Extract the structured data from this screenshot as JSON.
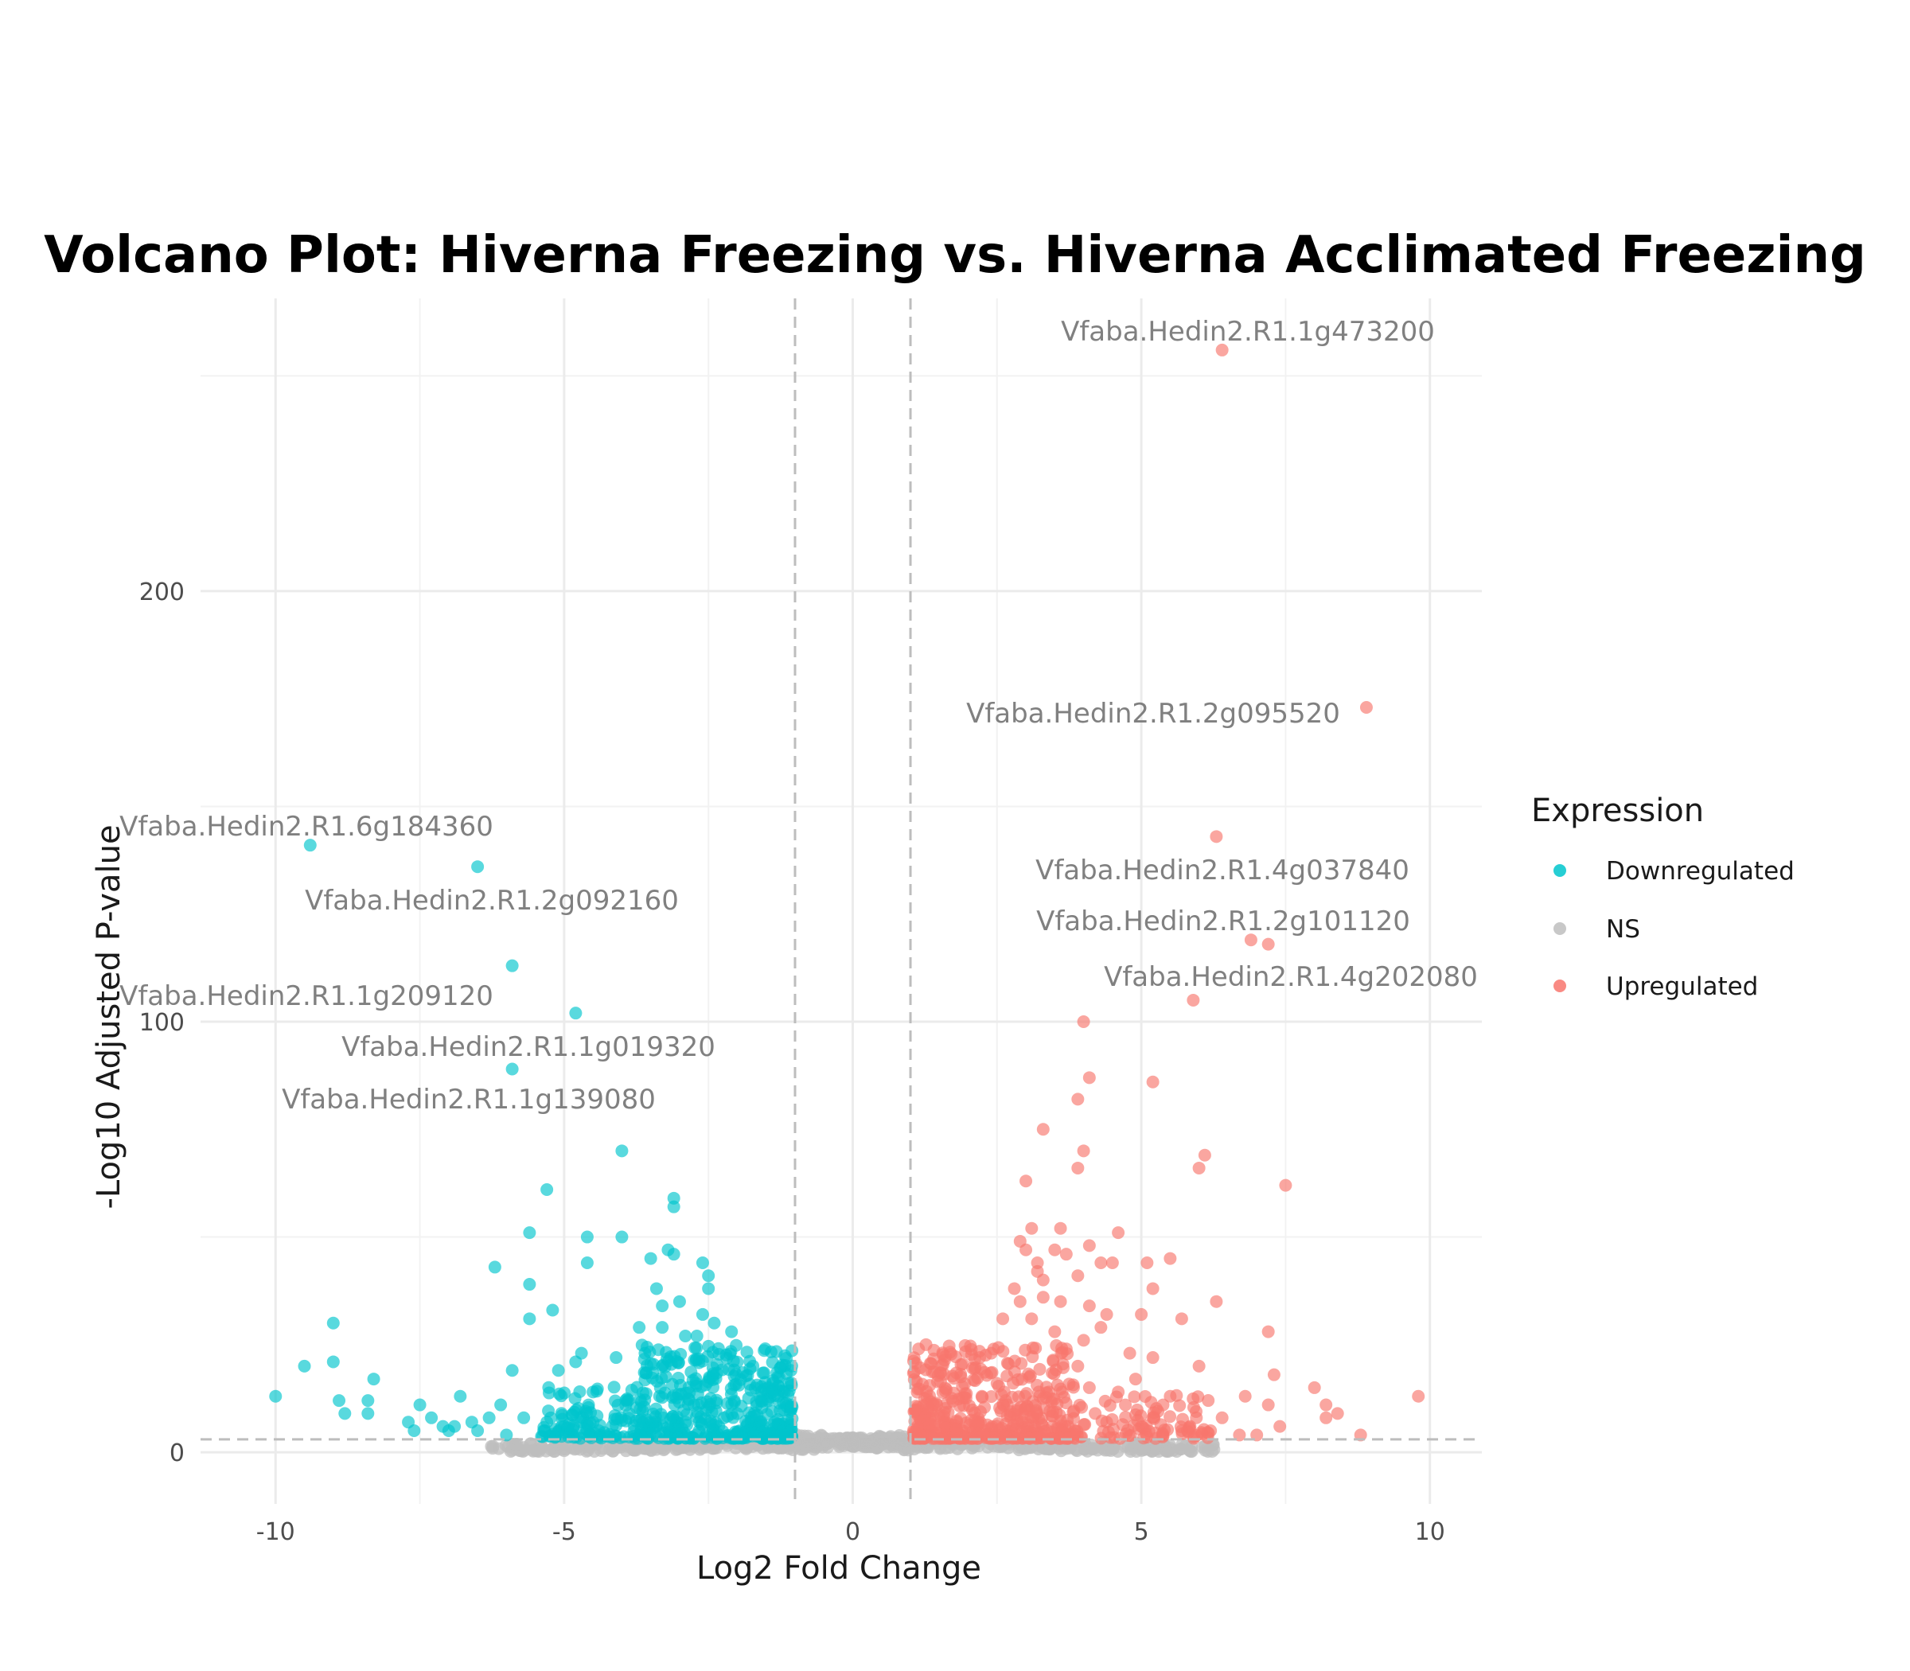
{
  "chart_data": {
    "type": "scatter",
    "title": "Volcano Plot: Hiverna Freezing vs. Hiverna Acclimated Freezing",
    "xlabel": "Log2 Fold Change",
    "ylabel": "-Log10 Adjusted P-value",
    "xlim": [
      -11.3,
      10.9
    ],
    "ylim": [
      -12,
      268
    ],
    "x_ticks": [
      -10,
      -5,
      0,
      5,
      10
    ],
    "x_tick_labels": [
      "-10",
      "-5",
      "0",
      "5",
      "10"
    ],
    "y_ticks": [
      0,
      100,
      200
    ],
    "y_tick_labels": [
      "0",
      "100",
      "200"
    ],
    "grid": true,
    "thresholds": {
      "log2fc": [
        -1,
        1
      ],
      "neg_log10_padj": 3
    },
    "legend": {
      "title": "Expression",
      "position": "right",
      "entries": [
        {
          "label": "Downregulated",
          "color": "#00c5cd"
        },
        {
          "label": "NS",
          "color": "#bebebe"
        },
        {
          "label": "Upregulated",
          "color": "#f8766d"
        }
      ]
    },
    "series": [
      {
        "name": "Downregulated",
        "color": "#00c5cd",
        "points": [
          [
            -9.4,
            141
          ],
          [
            -6.5,
            136
          ],
          [
            -5.9,
            113
          ],
          [
            -4.8,
            102
          ],
          [
            -5.9,
            89
          ],
          [
            -4.0,
            70
          ],
          [
            -5.3,
            61
          ],
          [
            -3.1,
            59
          ],
          [
            -3.1,
            57
          ],
          [
            -5.6,
            51
          ],
          [
            -4.6,
            50
          ],
          [
            -4.0,
            50
          ],
          [
            -3.2,
            47
          ],
          [
            -3.1,
            46
          ],
          [
            -3.5,
            45
          ],
          [
            -4.6,
            44
          ],
          [
            -2.6,
            44
          ],
          [
            -6.2,
            43
          ],
          [
            -2.5,
            41
          ],
          [
            -5.6,
            39
          ],
          [
            -2.5,
            38
          ],
          [
            -3.4,
            38
          ],
          [
            -3.3,
            34
          ],
          [
            -3.0,
            35
          ],
          [
            -5.2,
            33
          ],
          [
            -5.6,
            31
          ],
          [
            -9.0,
            30
          ],
          [
            -2.6,
            32
          ],
          [
            -2.4,
            30
          ],
          [
            -3.3,
            29
          ],
          [
            -3.7,
            29
          ],
          [
            -2.1,
            28
          ],
          [
            -2.9,
            27
          ],
          [
            -2.7,
            27
          ],
          [
            -4.7,
            23
          ],
          [
            -4.1,
            22
          ],
          [
            -3.6,
            23
          ],
          [
            -4.8,
            21
          ],
          [
            -9.0,
            21
          ],
          [
            -9.5,
            20
          ],
          [
            -5.9,
            19
          ],
          [
            -5.1,
            19
          ],
          [
            -3.3,
            20
          ],
          [
            -8.3,
            17
          ],
          [
            -4.5,
            14
          ],
          [
            -10.0,
            13
          ],
          [
            -6.8,
            13
          ],
          [
            -8.9,
            12
          ],
          [
            -8.4,
            12
          ],
          [
            -7.5,
            11
          ],
          [
            -6.1,
            11
          ],
          [
            -8.8,
            9
          ],
          [
            -8.4,
            9
          ],
          [
            -5.7,
            8
          ],
          [
            -7.3,
            8
          ],
          [
            -6.3,
            8
          ],
          [
            -7.7,
            7
          ],
          [
            -6.6,
            7
          ],
          [
            -5.3,
            7
          ],
          [
            -6.9,
            6
          ],
          [
            -7.1,
            6
          ],
          [
            -5.0,
            6
          ],
          [
            -7.0,
            5
          ],
          [
            -6.5,
            5
          ],
          [
            -4.4,
            5
          ],
          [
            -6.0,
            4
          ],
          [
            -7.6,
            5
          ]
        ]
      },
      {
        "name": "Upregulated",
        "color": "#f8766d",
        "points": [
          [
            6.4,
            256
          ],
          [
            8.9,
            173
          ],
          [
            6.3,
            143
          ],
          [
            6.9,
            119
          ],
          [
            7.2,
            118
          ],
          [
            5.9,
            105
          ],
          [
            4.0,
            100
          ],
          [
            4.1,
            87
          ],
          [
            5.2,
            86
          ],
          [
            3.9,
            82
          ],
          [
            3.3,
            75
          ],
          [
            4.0,
            70
          ],
          [
            6.1,
            69
          ],
          [
            3.9,
            66
          ],
          [
            6.0,
            66
          ],
          [
            3.0,
            63
          ],
          [
            7.5,
            62
          ],
          [
            3.1,
            52
          ],
          [
            3.6,
            52
          ],
          [
            4.6,
            51
          ],
          [
            2.9,
            49
          ],
          [
            4.1,
            48
          ],
          [
            3.0,
            47
          ],
          [
            3.5,
            47
          ],
          [
            3.7,
            46
          ],
          [
            5.5,
            45
          ],
          [
            3.2,
            44
          ],
          [
            4.3,
            44
          ],
          [
            4.5,
            44
          ],
          [
            5.1,
            44
          ],
          [
            3.2,
            42
          ],
          [
            3.9,
            41
          ],
          [
            3.3,
            40
          ],
          [
            5.2,
            38
          ],
          [
            2.8,
            38
          ],
          [
            3.3,
            36
          ],
          [
            6.3,
            35
          ],
          [
            3.6,
            35
          ],
          [
            2.9,
            35
          ],
          [
            4.1,
            34
          ],
          [
            5.0,
            32
          ],
          [
            4.4,
            32
          ],
          [
            5.7,
            31
          ],
          [
            2.6,
            31
          ],
          [
            3.1,
            31
          ],
          [
            4.3,
            29
          ],
          [
            3.5,
            28
          ],
          [
            7.2,
            28
          ],
          [
            4.0,
            26
          ],
          [
            3.7,
            24
          ],
          [
            4.8,
            23
          ],
          [
            2.4,
            23
          ],
          [
            2.2,
            22
          ],
          [
            5.2,
            22
          ],
          [
            3.9,
            20
          ],
          [
            6.0,
            20
          ],
          [
            7.3,
            18
          ],
          [
            4.9,
            17
          ],
          [
            2.5,
            16
          ],
          [
            4.1,
            15
          ],
          [
            8.0,
            15
          ],
          [
            4.6,
            14
          ],
          [
            9.8,
            13
          ],
          [
            3.4,
            14
          ],
          [
            6.8,
            13
          ],
          [
            5.5,
            13
          ],
          [
            8.2,
            11
          ],
          [
            7.2,
            11
          ],
          [
            8.4,
            9
          ],
          [
            8.2,
            8
          ],
          [
            6.4,
            8
          ],
          [
            7.4,
            6
          ],
          [
            8.8,
            4
          ],
          [
            6.7,
            4
          ],
          [
            7.0,
            4
          ],
          [
            5.7,
            5
          ],
          [
            6.2,
            5
          ],
          [
            4.4,
            7
          ],
          [
            5.0,
            6
          ],
          [
            4.2,
            9
          ]
        ]
      }
    ],
    "labeled_points": [
      {
        "gene": "Vfaba.Hedin2.R1.1g473200",
        "x": 6.4,
        "y": 256
      },
      {
        "gene": "Vfaba.Hedin2.R1.2g095520",
        "x": 8.9,
        "y": 173
      },
      {
        "gene": "Vfaba.Hedin2.R1.6g184360",
        "x": -9.4,
        "y": 141
      },
      {
        "gene": "Vfaba.Hedin2.R1.2g092160",
        "x": -6.5,
        "y": 136
      },
      {
        "gene": "Vfaba.Hedin2.R1.4g037840",
        "x": 6.3,
        "y": 143
      },
      {
        "gene": "Vfaba.Hedin2.R1.2g101120",
        "x": 6.9,
        "y": 119
      },
      {
        "gene": "Vfaba.Hedin2.R1.4g202080",
        "x": 5.9,
        "y": 105
      },
      {
        "gene": "Vfaba.Hedin2.R1.1g209120",
        "x": -5.9,
        "y": 113
      },
      {
        "gene": "Vfaba.Hedin2.R1.1g019320",
        "x": -4.8,
        "y": 102
      },
      {
        "gene": "Vfaba.Hedin2.R1.1g139080",
        "x": -5.9,
        "y": 89
      }
    ]
  }
}
